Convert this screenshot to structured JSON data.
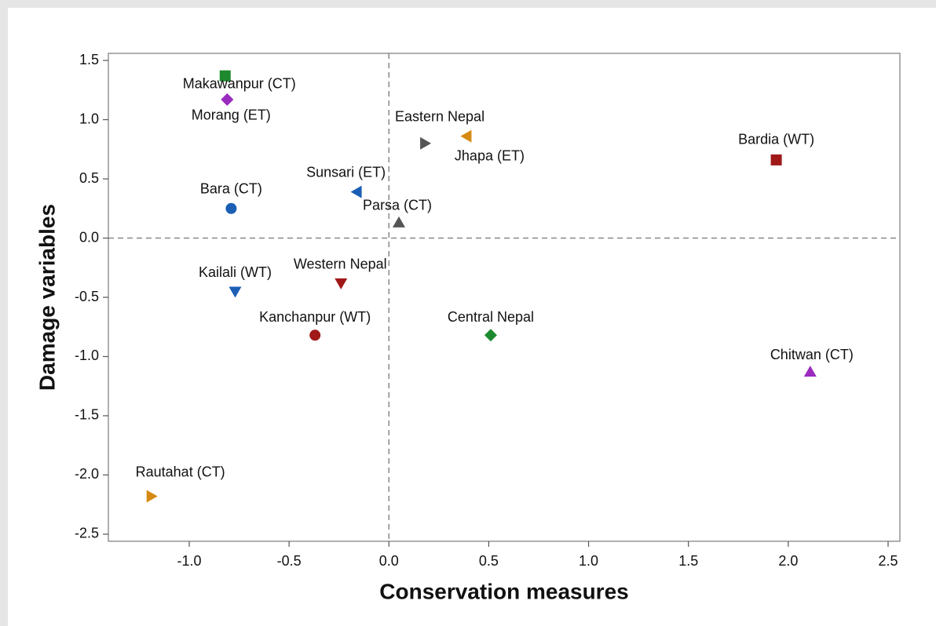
{
  "chart_data": {
    "type": "scatter",
    "x_label": "Conservation measures",
    "y_label": "Damage variables",
    "xlim": [
      -1.405,
      2.559
    ],
    "ylim": [
      -2.56,
      1.56
    ],
    "xticks": [
      {
        "value": -1,
        "label": "-1.0"
      },
      -0.5,
      {
        "value": 0,
        "label": "0.0"
      },
      0.5,
      {
        "value": 1,
        "label": "1.0"
      },
      1.5,
      {
        "value": 2,
        "label": "2.0"
      },
      2.5
    ],
    "yticks": [
      1.5,
      {
        "value": 1,
        "label": "1.0"
      },
      0.5,
      {
        "value": 0,
        "label": "0.0"
      },
      -0.5,
      {
        "value": -1,
        "label": "-1.0"
      },
      -1.5,
      {
        "value": -2,
        "label": "-2.0"
      },
      -2.5
    ],
    "reference_x": 0,
    "reference_y": 0,
    "series": [
      {
        "name": "Makawanpur (CT)",
        "color": "#1e8a2f",
        "marker": "square",
        "x": [
          -0.82
        ],
        "values": [
          1.37
        ]
      },
      {
        "name": "Morang (ET)",
        "color": "#9a2bbf",
        "marker": "diamond",
        "x": [
          -0.81
        ],
        "values": [
          1.17
        ]
      },
      {
        "name": "Eastern Nepal",
        "color": "#555555",
        "marker": "triangle-right",
        "x": [
          0.18
        ],
        "values": [
          0.8
        ]
      },
      {
        "name": "Jhapa (ET)",
        "color": "#d68a12",
        "marker": "triangle-left",
        "x": [
          0.39
        ],
        "values": [
          0.86
        ]
      },
      {
        "name": "Bardia (WT)",
        "color": "#a01818",
        "marker": "square",
        "x": [
          1.94
        ],
        "values": [
          0.66
        ]
      },
      {
        "name": "Sunsari (ET)",
        "color": "#1a5fb4",
        "marker": "triangle-left",
        "x": [
          -0.16
        ],
        "values": [
          0.39
        ]
      },
      {
        "name": "Bara (CT)",
        "color": "#1a5fb4",
        "marker": "circle",
        "x": [
          -0.79
        ],
        "values": [
          0.25
        ]
      },
      {
        "name": "Parsa (CT)",
        "color": "#555555",
        "marker": "triangle-up",
        "x": [
          0.05
        ],
        "values": [
          0.13
        ]
      },
      {
        "name": "Kailali (WT)",
        "color": "#1a5fb4",
        "marker": "triangle-down",
        "x": [
          -0.77
        ],
        "values": [
          -0.45
        ]
      },
      {
        "name": "Western Nepal",
        "color": "#a01818",
        "marker": "triangle-down",
        "x": [
          -0.24
        ],
        "values": [
          -0.38
        ]
      },
      {
        "name": "Kanchanpur (WT)",
        "color": "#a01818",
        "marker": "circle",
        "x": [
          -0.37
        ],
        "values": [
          -0.82
        ]
      },
      {
        "name": "Central Nepal",
        "color": "#1e8a2f",
        "marker": "diamond",
        "x": [
          0.51
        ],
        "values": [
          -0.82
        ]
      },
      {
        "name": "Chitwan (CT)",
        "color": "#9a2bbf",
        "marker": "triangle-up",
        "x": [
          2.11
        ],
        "values": [
          -1.13
        ]
      },
      {
        "name": "Rautahat (CT)",
        "color": "#d68a12",
        "marker": "triangle-right",
        "x": [
          -1.19
        ],
        "values": [
          -2.18
        ]
      }
    ]
  }
}
